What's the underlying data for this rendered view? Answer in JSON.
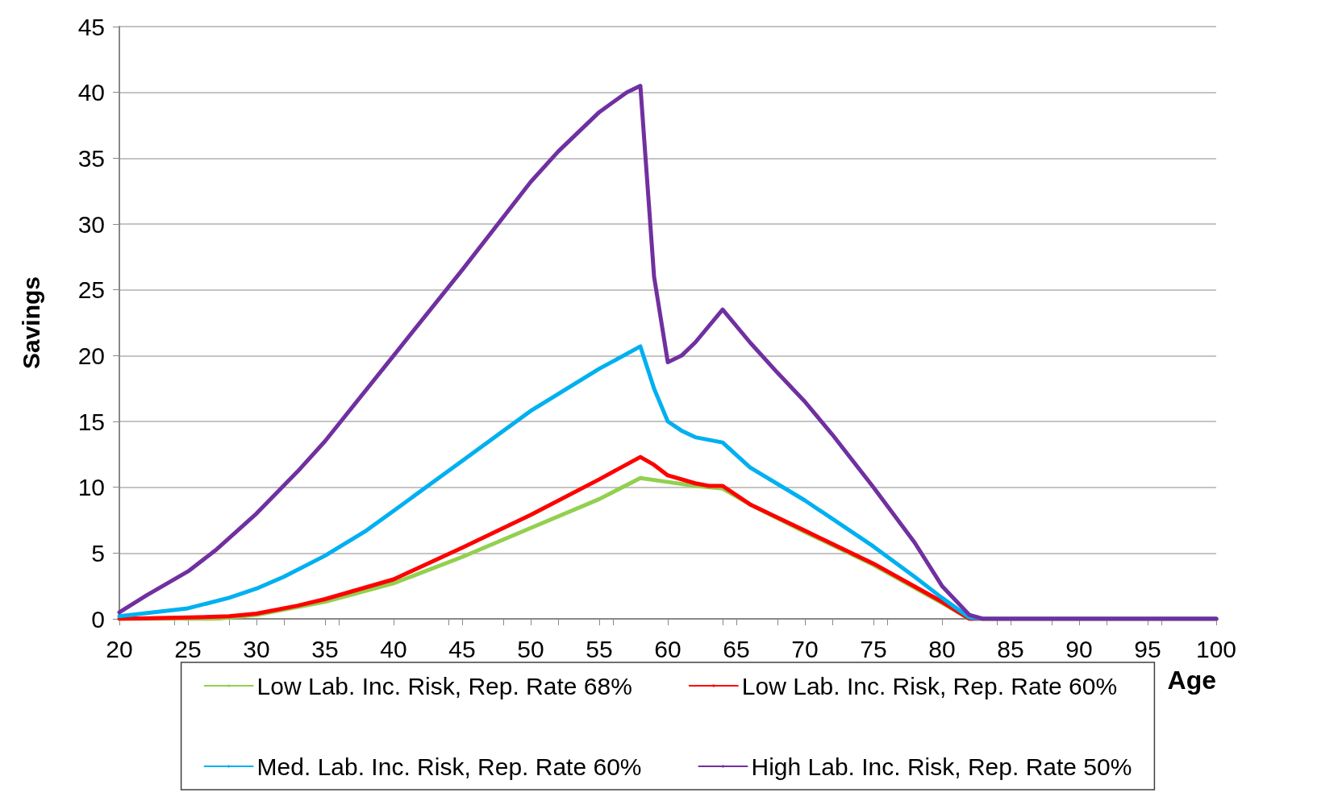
{
  "chart_data": {
    "type": "line",
    "xlabel": "Age",
    "ylabel": "Savings",
    "xlim": [
      20,
      100
    ],
    "xticks": [
      20,
      25,
      30,
      35,
      40,
      45,
      50,
      55,
      60,
      65,
      70,
      75,
      80,
      85,
      90,
      95,
      100
    ],
    "ylim": [
      0,
      45
    ],
    "yticks": [
      0,
      5,
      10,
      15,
      20,
      25,
      30,
      35,
      40,
      45
    ],
    "grid": "y",
    "legend": "bottom",
    "marker": "none",
    "line_style": "solid",
    "series": [
      {
        "name": "Low Lab. Inc. Risk, Rep. Rate 68%",
        "color": "#92d050",
        "x": [
          20,
          27,
          30,
          35,
          40,
          45,
          50,
          55,
          58,
          60,
          62,
          64,
          66,
          70,
          75,
          80,
          82,
          100
        ],
        "values": [
          0,
          0,
          0.3,
          1.3,
          2.7,
          4.7,
          6.9,
          9.1,
          10.7,
          10.4,
          10.1,
          9.9,
          8.7,
          6.6,
          4.1,
          1.2,
          0,
          0
        ]
      },
      {
        "name": "Low Lab. Inc. Risk, Rep. Rate 60%",
        "color": "#ff0000",
        "x": [
          20,
          25,
          28,
          30,
          33,
          35,
          40,
          45,
          50,
          55,
          58,
          59,
          60,
          62,
          63,
          64,
          66,
          70,
          75,
          80,
          82,
          100
        ],
        "values": [
          0,
          0.1,
          0.2,
          0.4,
          1,
          1.5,
          3,
          5.4,
          7.9,
          10.6,
          12.3,
          11.7,
          10.9,
          10.3,
          10.1,
          10.1,
          8.7,
          6.7,
          4.2,
          1.3,
          0,
          0
        ]
      },
      {
        "name": "Med. Lab. Inc. Risk, Rep. Rate 60%",
        "color": "#00b0f0",
        "x": [
          20,
          25,
          28,
          30,
          32,
          35,
          38,
          40,
          45,
          50,
          55,
          58,
          59,
          60,
          61,
          62,
          64,
          66,
          70,
          75,
          78,
          80,
          82,
          83,
          100
        ],
        "values": [
          0.2,
          0.8,
          1.6,
          2.3,
          3.2,
          4.8,
          6.7,
          8.2,
          12,
          15.8,
          19,
          20.7,
          17.5,
          15,
          14.3,
          13.8,
          13.4,
          11.5,
          9,
          5.5,
          3.2,
          1.6,
          0.1,
          0,
          0
        ]
      },
      {
        "name": "High Lab. Inc. Risk, Rep. Rate 50%",
        "color": "#7030a0",
        "x": [
          20,
          22,
          25,
          27,
          30,
          33,
          35,
          40,
          45,
          50,
          52,
          55,
          57,
          58,
          59,
          60,
          61,
          62,
          64,
          66,
          68,
          70,
          72,
          75,
          78,
          80,
          82,
          83,
          100
        ],
        "values": [
          0.5,
          1.8,
          3.6,
          5.2,
          8,
          11.2,
          13.5,
          20,
          26.5,
          33.2,
          35.5,
          38.5,
          40,
          40.5,
          26,
          19.5,
          20,
          21,
          23.5,
          21,
          18.7,
          16.5,
          14,
          10,
          5.8,
          2.5,
          0.3,
          0,
          0
        ]
      }
    ]
  }
}
